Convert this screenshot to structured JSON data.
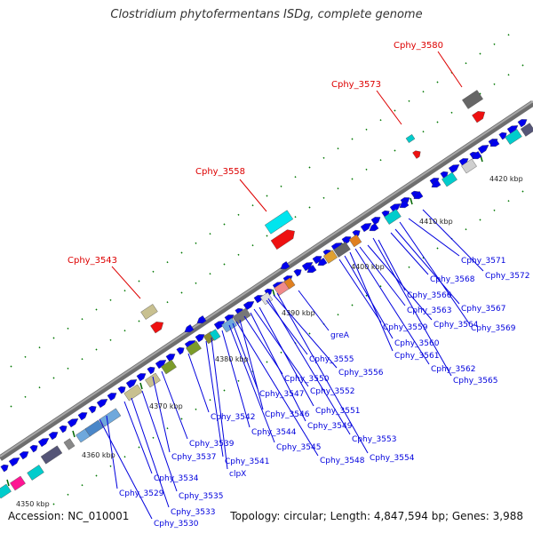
{
  "title": "Clostridium phytofermentans ISDg, complete genome",
  "footer": {
    "accession_label": "Accession:",
    "accession": "NC_010001",
    "topology_label": "Topology:",
    "topology": "circular;",
    "length_label": "Length:",
    "length": "4,847,594 bp;",
    "genes_label": "Genes:",
    "genes": "3,988"
  },
  "colors": {
    "backbone": "#8f8f8f",
    "forward_gene": "#0000ee",
    "lower_label": "#0000dd",
    "upper_label": "#dd0000",
    "gc_dots": "#007700"
  },
  "scale_labels": [
    "4350 kbp",
    "4360 kbp",
    "4370 kbp",
    "4380 kbp",
    "4390 kbp",
    "4400 kbp",
    "4410 kbp",
    "4420 kbp"
  ],
  "upper_labels": [
    "Cphy_3543",
    "Cphy_3558",
    "Cphy_3573",
    "Cphy_3580"
  ],
  "lower_labels": [
    "greA",
    "Cphy_3571",
    "Cphy_3572",
    "Cphy_3568",
    "Cphy_3566",
    "Cphy_3567",
    "Cphy_3563",
    "Cphy_3569",
    "Cphy_3564",
    "Cphy_3559",
    "Cphy_3560",
    "Cphy_3561",
    "Cphy_3562",
    "Cphy_3565",
    "Cphy_3555",
    "Cphy_3556",
    "Cphy_3550",
    "Cphy_3552",
    "Cphy_3547",
    "Cphy_3551",
    "Cphy_3546",
    "Cphy_3549",
    "Cphy_3542",
    "Cphy_3544",
    "Cphy_3553",
    "Cphy_3545",
    "Cphy_3554",
    "Cphy_3539",
    "Cphy_3548",
    "Cphy_3537",
    "Cphy_3541",
    "clpX",
    "Cphy_3534",
    "Cphy_3535",
    "Cphy_3529",
    "Cphy_3533",
    "Cphy_3530"
  ]
}
